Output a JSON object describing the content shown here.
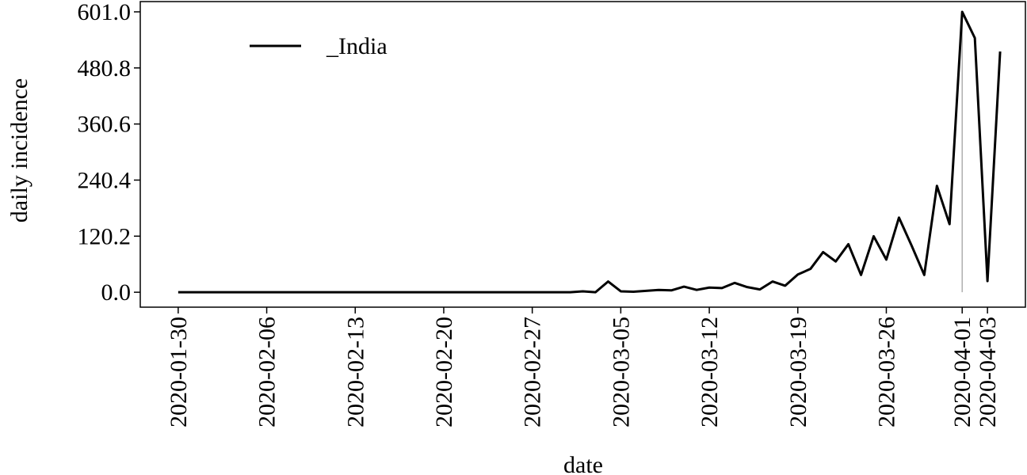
{
  "chart_data": {
    "type": "line",
    "x_label": "date",
    "y_label": "daily incidence",
    "x": [
      "2020-01-30",
      "2020-01-31",
      "2020-02-01",
      "2020-02-02",
      "2020-02-03",
      "2020-02-04",
      "2020-02-05",
      "2020-02-06",
      "2020-02-07",
      "2020-02-08",
      "2020-02-09",
      "2020-02-10",
      "2020-02-11",
      "2020-02-12",
      "2020-02-13",
      "2020-02-14",
      "2020-02-15",
      "2020-02-16",
      "2020-02-17",
      "2020-02-18",
      "2020-02-19",
      "2020-02-20",
      "2020-02-21",
      "2020-02-22",
      "2020-02-23",
      "2020-02-24",
      "2020-02-25",
      "2020-02-26",
      "2020-02-27",
      "2020-02-28",
      "2020-02-29",
      "2020-03-01",
      "2020-03-02",
      "2020-03-03",
      "2020-03-04",
      "2020-03-05",
      "2020-03-06",
      "2020-03-07",
      "2020-03-08",
      "2020-03-09",
      "2020-03-10",
      "2020-03-11",
      "2020-03-12",
      "2020-03-13",
      "2020-03-14",
      "2020-03-15",
      "2020-03-16",
      "2020-03-17",
      "2020-03-18",
      "2020-03-19",
      "2020-03-20",
      "2020-03-21",
      "2020-03-22",
      "2020-03-23",
      "2020-03-24",
      "2020-03-25",
      "2020-03-26",
      "2020-03-27",
      "2020-03-28",
      "2020-03-29",
      "2020-03-30",
      "2020-03-31",
      "2020-04-01",
      "2020-04-02",
      "2020-04-03",
      "2020-04-04"
    ],
    "series": [
      {
        "name": "_India",
        "color": "#000000",
        "values": [
          0,
          0,
          0,
          0,
          0,
          0,
          0,
          0,
          0,
          0,
          0,
          0,
          0,
          0,
          0,
          0,
          0,
          0,
          0,
          0,
          0,
          0,
          0,
          0,
          0,
          0,
          0,
          0,
          0,
          0,
          0,
          0,
          2,
          0,
          23,
          2,
          1,
          3,
          5,
          4,
          12,
          5,
          10,
          9,
          20,
          11,
          6,
          23,
          14,
          38,
          50,
          86,
          66,
          103,
          37,
          120,
          70,
          160,
          100,
          37,
          228,
          146,
          601,
          545,
          24,
          516
        ]
      }
    ],
    "xlim": [
      "2020-01-27",
      "2020-04-06"
    ],
    "xticks": [
      "2020-01-30",
      "2020-02-06",
      "2020-02-13",
      "2020-02-20",
      "2020-02-27",
      "2020-03-05",
      "2020-03-12",
      "2020-03-19",
      "2020-03-26",
      "2020-04-01",
      "2020-04-03"
    ],
    "ylim": [
      -32,
      623
    ],
    "yticks": [
      {
        "value": 0,
        "label": "0.0"
      },
      {
        "value": 120.2,
        "label": "120.2"
      },
      {
        "value": 240.4,
        "label": "240.4"
      },
      {
        "value": 360.6,
        "label": "360.6"
      },
      {
        "value": 480.8,
        "label": "480.8"
      },
      {
        "value": 601,
        "label": "601.0"
      }
    ],
    "vline_x": "2020-04-01",
    "vline_color": "#b0b0b0",
    "legend": "upper left"
  }
}
